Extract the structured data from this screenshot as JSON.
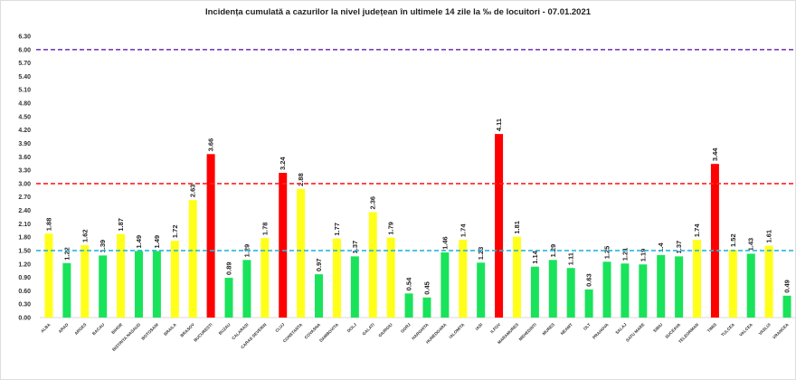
{
  "chart_data": {
    "type": "bar",
    "title": "Incidența cumulată a cazurilor la nivel județean în ultimele 14 zile la ‰ de locuitori - 07.01.2021",
    "xlabel": "",
    "ylabel": "",
    "ylim": [
      0,
      6.3
    ],
    "yticks": [
      "0.00",
      "0.30",
      "0.60",
      "0.90",
      "1.20",
      "1.50",
      "1.80",
      "2.10",
      "2.40",
      "2.70",
      "3.00",
      "3.30",
      "3.60",
      "3.90",
      "4.20",
      "4.50",
      "4.80",
      "5.10",
      "5.40",
      "5.70",
      "6.00",
      "6.30"
    ],
    "grid": false,
    "categories": [
      "ALBA",
      "ARAD",
      "ARGES",
      "BACAU",
      "BIHOR",
      "BISTRITA NASAUD",
      "BOTOSANI",
      "BRAILA",
      "BRASOV",
      "BUCURESTI",
      "BUZAU",
      "CALARASI",
      "CARAS SEVERIN",
      "CLUJ",
      "CONSTANTA",
      "COVASNA",
      "DAMBOVITA",
      "DOLJ",
      "GALATI",
      "GIURGIU",
      "GORJ",
      "HARGHITA",
      "HUNEDOARA",
      "IALOMITA",
      "IASI",
      "ILFOV",
      "MARAMURES",
      "MEHEDINTI",
      "MURES",
      "NEAMT",
      "OLT",
      "PRAHOVA",
      "SALAJ",
      "SATU MARE",
      "SIBIU",
      "SUCEAVA",
      "TELEORMAN",
      "TIMIS",
      "TULCEA",
      "VALCEA",
      "VASLUI",
      "VRANCEA"
    ],
    "values": [
      1.88,
      1.22,
      1.62,
      1.39,
      1.87,
      1.49,
      1.49,
      1.72,
      2.63,
      3.66,
      0.89,
      1.29,
      1.78,
      3.24,
      2.88,
      0.97,
      1.77,
      1.37,
      2.36,
      1.79,
      0.54,
      0.45,
      1.46,
      1.74,
      1.23,
      4.11,
      1.81,
      1.14,
      1.29,
      1.11,
      0.63,
      1.25,
      1.21,
      1.19,
      1.4,
      1.37,
      1.74,
      3.44,
      1.52,
      1.43,
      1.61,
      0.49
    ],
    "data_labels": [
      "1.88",
      "1.22",
      "1.62",
      "1.39",
      "1.87",
      "1.49",
      "1.49",
      "1.72",
      "2.63",
      "3.66",
      "0.89",
      "1.29",
      "1.78",
      "3.24",
      "2.88",
      "0.97",
      "1.77",
      "1.37",
      "2.36",
      "1.79",
      "0.54",
      "0.45",
      "1.46",
      "1.74",
      "1.23",
      "4.11",
      "1.81",
      "1.14",
      "1.29",
      "1.11",
      "0.63",
      "1.25",
      "1.21",
      "1.19",
      "1.4",
      "1.37",
      "1.74",
      "3.44",
      "1.52",
      "1.43",
      "1.61",
      "0.49"
    ],
    "reference_lines": [
      {
        "value": 1.5,
        "color": "#29b6e0",
        "style": "dashed"
      },
      {
        "value": 3.0,
        "color": "#ff2020",
        "style": "dashed"
      },
      {
        "value": 6.0,
        "color": "#7b3fb8",
        "style": "dashed"
      }
    ],
    "color_rules": {
      "below_1_5": "#19e35a",
      "from_1_5_to_3": "#ffff1a",
      "above_3": "#ff0000"
    }
  }
}
